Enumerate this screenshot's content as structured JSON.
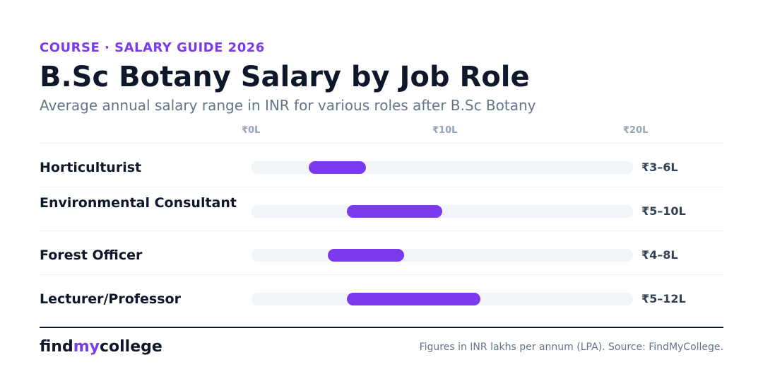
{
  "header": {
    "eyebrow": "COURSE · SALARY GUIDE 2026",
    "title": "B.Sc Botany Salary by Job Role",
    "subtitle": "Average annual salary range in INR for various roles after B.Sc Botany"
  },
  "chart_data": {
    "type": "bar",
    "orientation": "horizontal-range",
    "title": "B.Sc Botany Salary by Job Role",
    "unit": "LPA",
    "xlim": [
      0,
      20
    ],
    "ticks": [
      {
        "value": 0,
        "label": "₹0L"
      },
      {
        "value": 10,
        "label": "₹10L"
      },
      {
        "value": 20,
        "label": "₹20L"
      }
    ],
    "categories": [
      "Horticulturist",
      "Environmental Consultant",
      "Forest Officer",
      "Lecturer/Professor"
    ],
    "ranges": [
      {
        "min": 3,
        "max": 6,
        "label": "₹3–6L"
      },
      {
        "min": 5,
        "max": 10,
        "label": "₹5–10L"
      },
      {
        "min": 4,
        "max": 8,
        "label": "₹4–8L"
      },
      {
        "min": 5,
        "max": 12,
        "label": "₹5–12L"
      }
    ],
    "bar_color": "#7c3aed",
    "track_color": "#f1f4f8"
  },
  "footer": {
    "logo_part1": "find",
    "logo_part2": "my",
    "logo_part3": "college",
    "source": "Figures in INR lakhs per annum (LPA). Source: FindMyCollege."
  }
}
